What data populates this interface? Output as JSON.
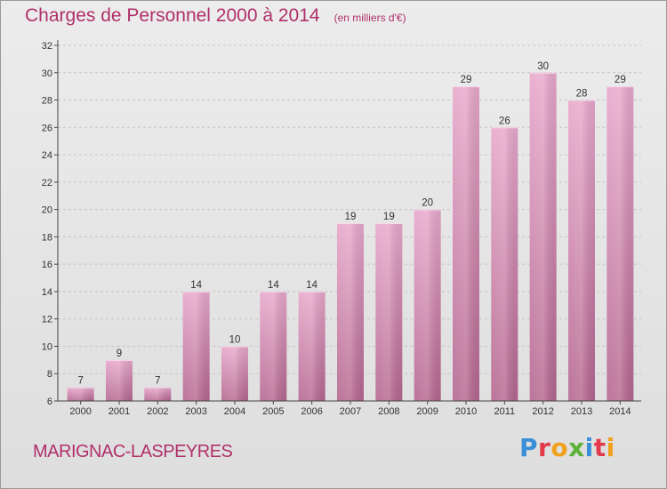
{
  "header": {
    "title": "Charges de Personnel 2000 à 2014",
    "unit": "(en milliers d'€)"
  },
  "footer": {
    "place": "MARIGNAC-LASPEYRES",
    "logo_text": "Proxiti"
  },
  "colors": {
    "accent": "#b0306a",
    "bar_top": "#e8a8cc",
    "bar_bottom": "#b4668f",
    "logo_letters": [
      "#3a8fd8",
      "#e23a4a",
      "#f1a01c",
      "#5cb236",
      "#3a8fd8",
      "#e23a4a",
      "#f1a01c"
    ]
  },
  "chart_data": {
    "type": "bar",
    "categories": [
      "2000",
      "2001",
      "2002",
      "2003",
      "2004",
      "2005",
      "2006",
      "2007",
      "2008",
      "2009",
      "2010",
      "2011",
      "2012",
      "2013",
      "2014"
    ],
    "values": [
      7,
      9,
      7,
      14,
      10,
      14,
      14,
      19,
      19,
      20,
      29,
      26,
      30,
      28,
      29
    ],
    "title": "Charges de Personnel 2000 à 2014",
    "xlabel": "",
    "ylabel": "",
    "ylim": [
      6,
      32
    ],
    "yticks": [
      6,
      8,
      10,
      12,
      14,
      16,
      18,
      20,
      22,
      24,
      26,
      28,
      30,
      32
    ],
    "grid": true,
    "data_labels": true,
    "legend": "none"
  }
}
